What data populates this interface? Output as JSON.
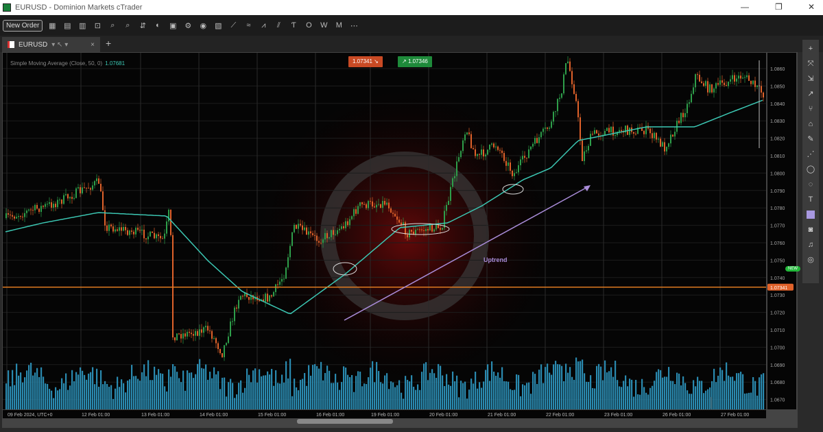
{
  "window": {
    "title": "EURUSD - Dominion Markets cTrader",
    "controls": [
      "—",
      "❐",
      "✕"
    ]
  },
  "toolbar": {
    "new_order": "New Order",
    "icons": [
      "layout-icon",
      "layout2-icon",
      "layout3-icon",
      "chart-type-icon",
      "zoom-in-icon",
      "zoom-out-icon",
      "indicators-icon",
      "cbots-icon",
      "template-icon",
      "settings-icon",
      "eye-icon",
      "drawing-icon",
      "line-icon",
      "fibo-icon",
      "pattern-icon",
      "channel-icon",
      "text-icon",
      "shape-icon",
      "w-icon",
      "m-icon",
      "more-icon"
    ],
    "glyphs": [
      "▦",
      "▤",
      "▥",
      "⊡",
      "⌕",
      "⌕",
      "⇵",
      "◐",
      "▣",
      "⚙",
      "◉",
      "▧",
      "⟋",
      "≈",
      "⩘",
      "⫽",
      "Ƭ",
      "O",
      "W",
      "M",
      "⋯"
    ]
  },
  "tab": {
    "symbol": "EURUSD",
    "extra": "▾ ↖ ▾",
    "close": "×",
    "add": "+"
  },
  "legend": {
    "text": "Simple Moving Average (Close, 50, 0)",
    "value": "1.07681"
  },
  "quotes": {
    "sell": "1.07341",
    "buy": "1.07346",
    "sell_icon": "↘",
    "buy_icon": "↗"
  },
  "current_price": "1.07341",
  "price_axis": [
    "1.0860",
    "1.0850",
    "1.0840",
    "1.0830",
    "1.0820",
    "1.0810",
    "1.0800",
    "1.0790",
    "1.0780",
    "1.0770",
    "1.0760",
    "1.0750",
    "1.0740",
    "1.0730",
    "1.0720",
    "1.0710",
    "1.0700",
    "1.0690",
    "1.0680",
    "1.0670"
  ],
  "time_axis": [
    "09 Feb 2024, UTC+0",
    "12 Feb 01:00",
    "13 Feb 01:00",
    "14 Feb 01:00",
    "15 Feb 01:00",
    "16 Feb 01:00",
    "19 Feb 01:00",
    "20 Feb 01:00",
    "21 Feb 01:00",
    "22 Feb 01:00",
    "23 Feb 01:00",
    "26 Feb 01:00",
    "27 Feb 01:00"
  ],
  "annotation": {
    "label": "Uptrend"
  },
  "colors": {
    "bull": "#2e9e4a",
    "bear": "#e0622a",
    "sma": "#3cc8b4",
    "volume": "#2a8ab0",
    "price_line": "#e07a20",
    "annotation": "#a98cd8"
  },
  "right_tools": {
    "icons": [
      "crosshair-icon",
      "pan-icon",
      "trendline-icon",
      "ray-icon",
      "fork-icon",
      "fibonacci-icon",
      "brush-icon",
      "measure-icon",
      "ellipse-icon",
      "lasso-icon",
      "text-icon",
      "rectangle-icon",
      "screenshot-icon",
      "alert-icon",
      "target-icon"
    ],
    "glyphs": [
      "+",
      "⤧",
      "⇲",
      "↗",
      "⑂",
      "⌂",
      "✎",
      "⋰",
      "◯",
      "◌",
      "T",
      "",
      "◙",
      "♫",
      "◎"
    ],
    "new_badge": "NEW"
  }
}
